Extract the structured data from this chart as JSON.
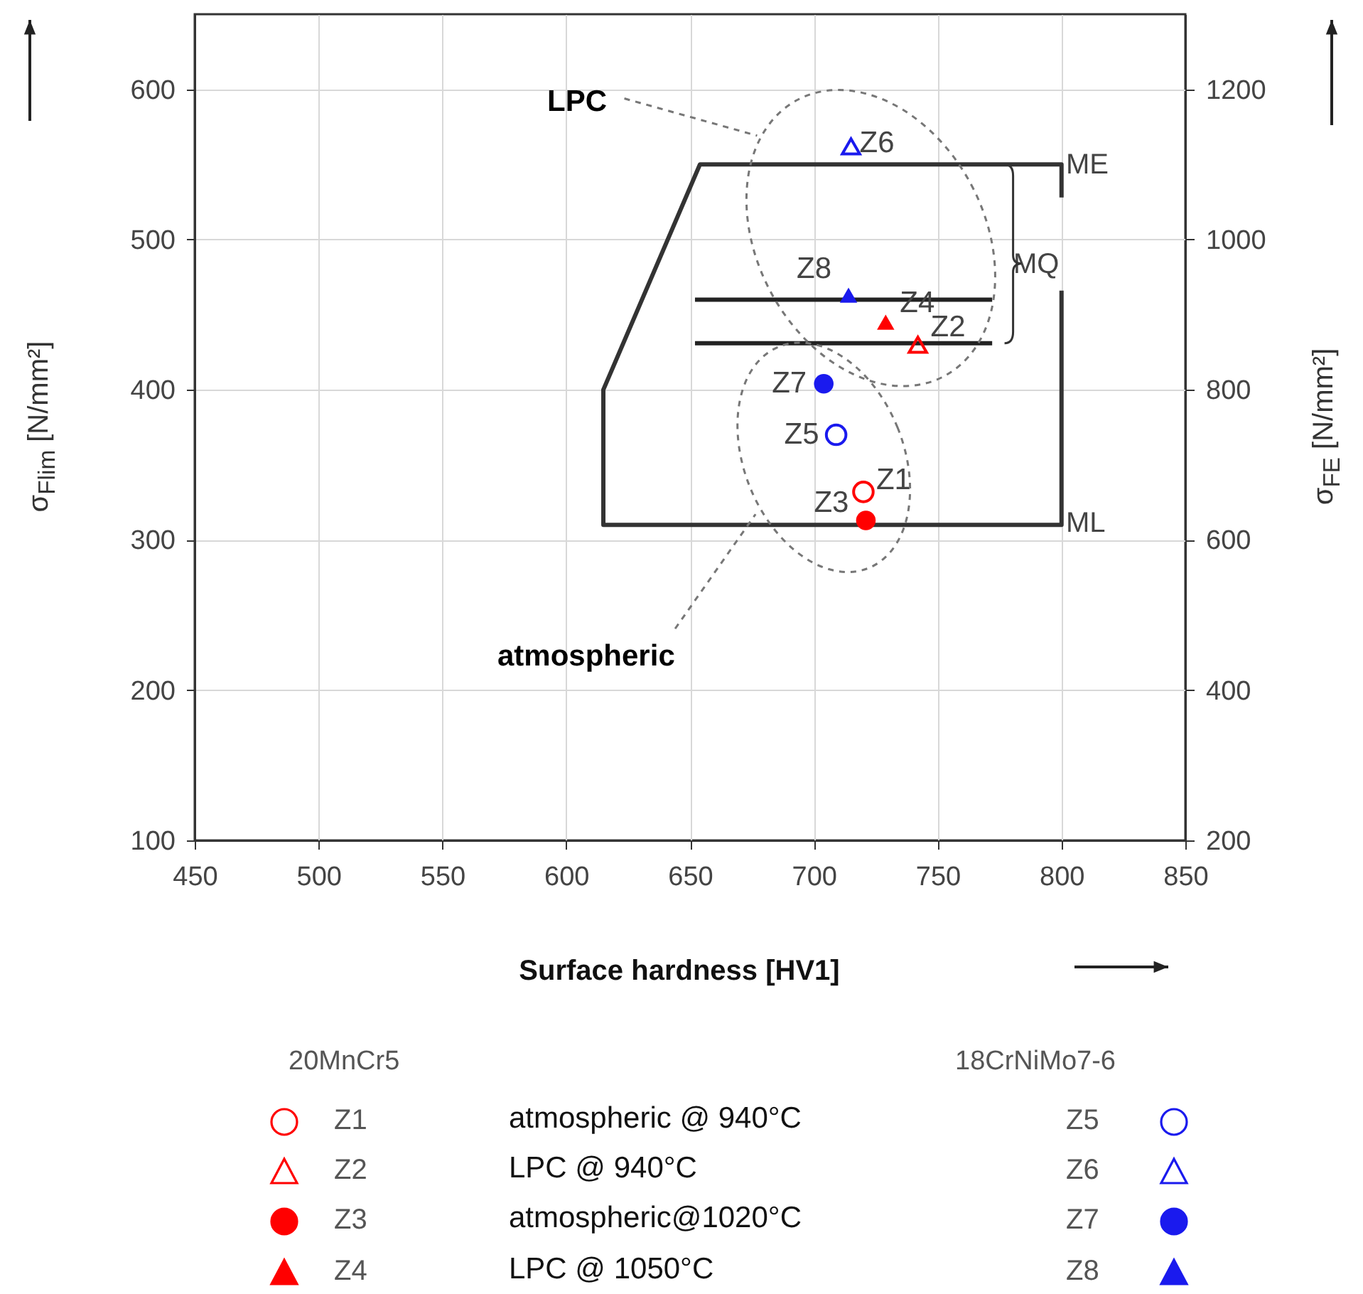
{
  "chart_data": {
    "type": "scatter",
    "xlabel": "Surface hardness [HV1]",
    "ylabel": "σ$_{Flim}$ [N/mm²]",
    "y2label": "σ$_{FE}$ [N/mm²]",
    "xlim": [
      450,
      850
    ],
    "xticks": [
      450,
      500,
      550,
      600,
      650,
      700,
      750,
      800,
      850
    ],
    "ylim": [
      100,
      650
    ],
    "yticks": [
      100,
      200,
      300,
      400,
      500,
      600
    ],
    "y2lim": [
      200,
      1300
    ],
    "y2ticks": [
      200,
      400,
      600,
      800,
      1000,
      1200
    ],
    "grid": true,
    "legend": "bottom",
    "series": [
      {
        "name": "Z1",
        "color": "#ff0000",
        "marker": "circle",
        "x": [
          720
        ],
        "values": [
          332
        ]
      },
      {
        "name": "Z2",
        "color": "#ff0000",
        "marker": "triangle",
        "x": [
          742
        ],
        "values": [
          430
        ]
      },
      {
        "name": "Z3",
        "color": "#ff0000",
        "marker": "circle",
        "x": [
          721
        ],
        "values": [
          313
        ]
      },
      {
        "name": "Z4",
        "color": "#ff0000",
        "marker": "triangle",
        "x": [
          729
        ],
        "values": [
          445
        ]
      },
      {
        "name": "Z5",
        "color": "#1a1aee",
        "marker": "circle",
        "x": [
          709
        ],
        "values": [
          370
        ]
      },
      {
        "name": "Z6",
        "color": "#1a1aee",
        "marker": "triangle",
        "x": [
          715
        ],
        "values": [
          562
        ]
      },
      {
        "name": "Z7",
        "color": "#1a1aee",
        "marker": "circle",
        "x": [
          704
        ],
        "values": [
          404
        ]
      },
      {
        "name": "Z8",
        "color": "#1a1aee",
        "marker": "triangle",
        "x": [
          714
        ],
        "values": [
          463
        ]
      },
      {
        "type": "line",
        "color": "#333333",
        "x": [
          800,
          800,
          654,
          615,
          615,
          800,
          800
        ],
        "values": [
          528,
          550,
          550,
          400,
          310,
          310,
          466
        ]
      },
      {
        "type": "line",
        "color": "#222222",
        "x": [
          652,
          772
        ],
        "values": [
          460,
          460
        ]
      },
      {
        "type": "line",
        "color": "#222222",
        "x": [
          652,
          772
        ],
        "values": [
          431,
          431
        ]
      }
    ],
    "annotations": [
      "LPC",
      "atmospheric",
      "ME",
      "MQ",
      "ML",
      "20MnCr5",
      "18CrNiMo7-6",
      "atmospheric @ 940°C",
      "LPC @ 940°C",
      "atmospheric@1020°C",
      "LPC @ 1050°C"
    ]
  }
}
